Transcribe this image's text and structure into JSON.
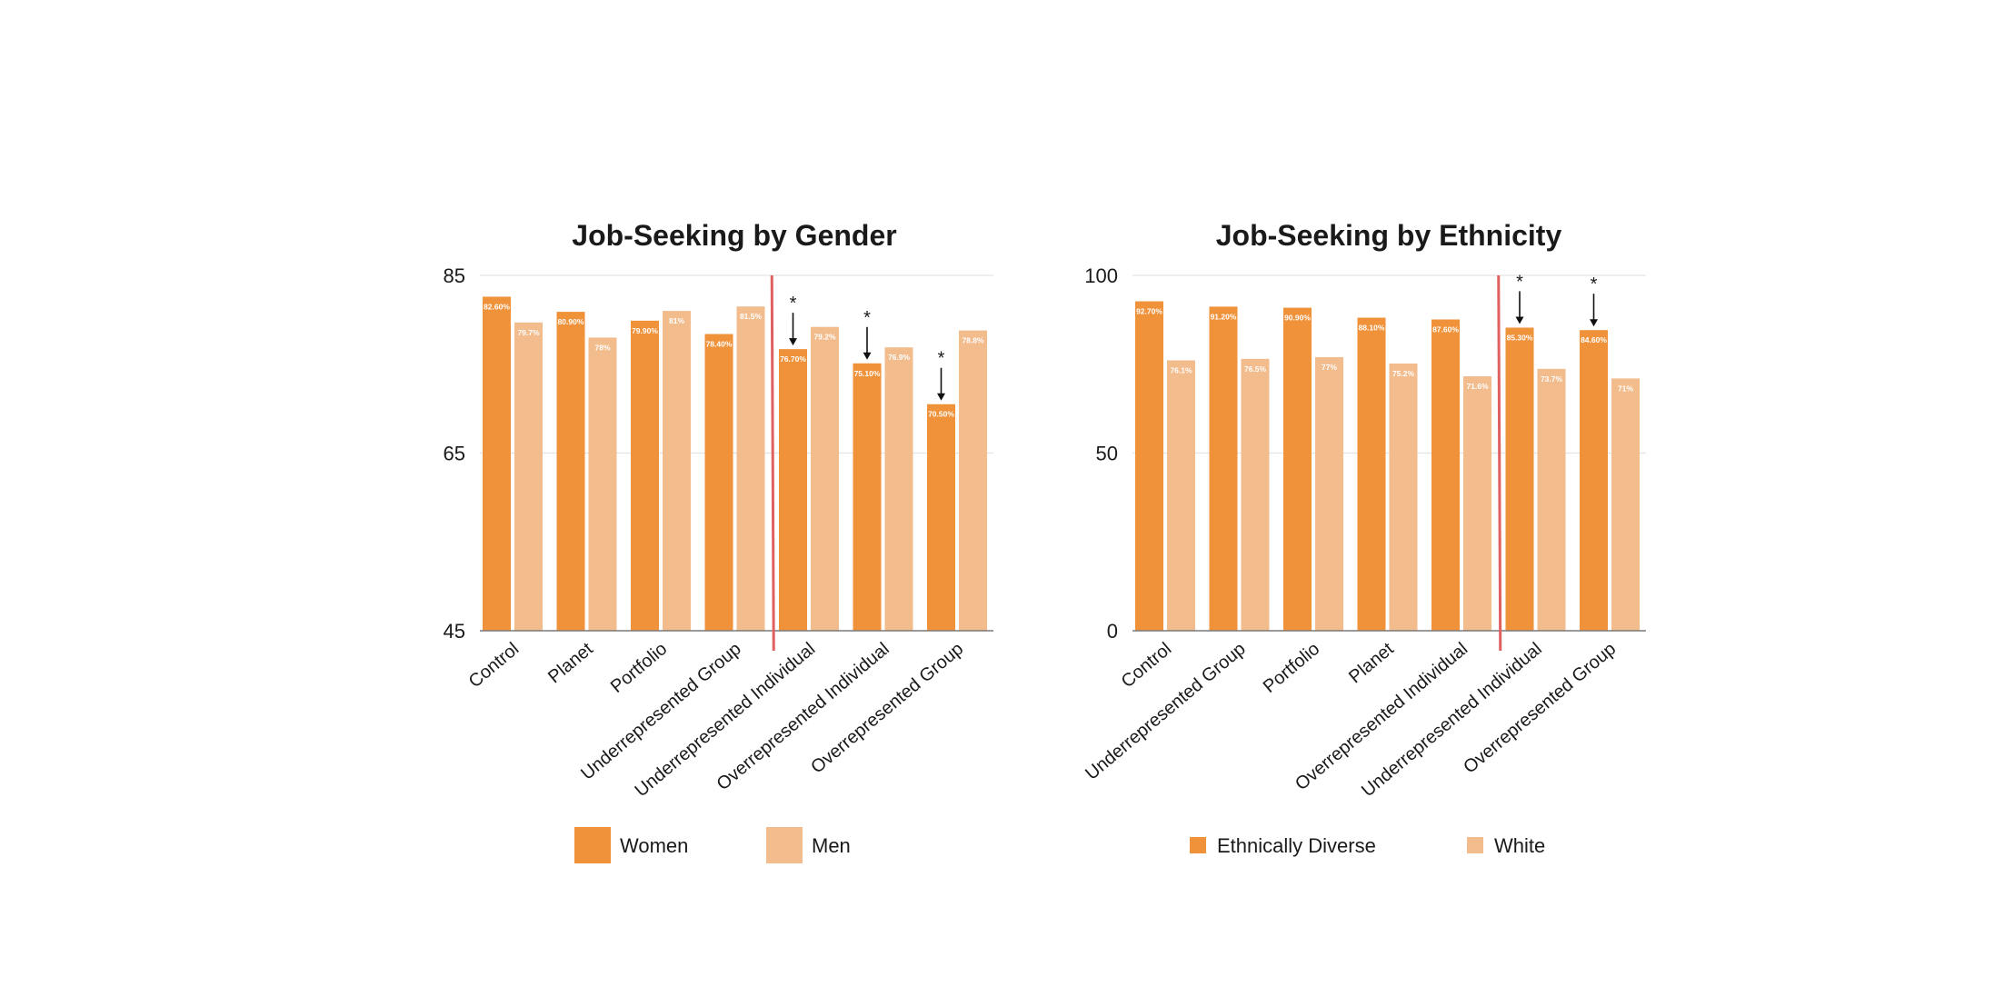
{
  "colors": {
    "primary": "#F0923A",
    "secondary": "#F2BC8D",
    "divider": "#E06060",
    "grid": "#E3E3E3",
    "axis": "#7a7a7a",
    "arrow": "#111111"
  },
  "chart_data": [
    {
      "type": "bar",
      "title": "Job-Seeking by Gender",
      "ylim": [
        45,
        85
      ],
      "yticks": [
        45,
        65,
        85
      ],
      "grid": true,
      "categories": [
        "Control",
        "Planet",
        "Portfolio",
        "Underrepresented Group",
        "Underrepresented Individual",
        "Overrepresented Individual",
        "Overrepresented Group"
      ],
      "series": [
        {
          "name": "Women",
          "values": [
            82.6,
            80.9,
            79.9,
            78.4,
            76.7,
            75.1,
            70.5
          ],
          "labels": [
            "82.60%",
            "80.90%",
            "79.90%",
            "78.40%",
            "76.70%",
            "75.10%",
            "70.50%"
          ]
        },
        {
          "name": "Men",
          "values": [
            79.7,
            78,
            81,
            81.5,
            79.2,
            76.9,
            78.8
          ],
          "labels": [
            "79.7%",
            "78%",
            "81%",
            "81.5%",
            "79.2%",
            "76.9%",
            "78.8%"
          ]
        }
      ],
      "divider_after_index": 3,
      "significance_marker": "*",
      "significant_indices": [
        4,
        5,
        6
      ],
      "legend": {
        "position": "bottom",
        "entries": [
          "Women",
          "Men"
        ]
      }
    },
    {
      "type": "bar",
      "title": "Job-Seeking by Ethnicity",
      "ylim": [
        0,
        100
      ],
      "yticks": [
        0,
        50,
        100
      ],
      "grid": true,
      "categories": [
        "Control",
        "Underrepresented Group",
        "Portfolio",
        "Planet",
        "Overrepresented Individual",
        "Underrepresented Individual",
        "Overrepresented Group"
      ],
      "series": [
        {
          "name": "Ethnically Diverse",
          "values": [
            92.7,
            91.2,
            90.9,
            88.1,
            87.6,
            85.3,
            84.6
          ],
          "labels": [
            "92.70%",
            "91.20%",
            "90.90%",
            "88.10%",
            "87.60%",
            "85.30%",
            "84.60%"
          ]
        },
        {
          "name": "White",
          "values": [
            76.1,
            76.5,
            77,
            75.2,
            71.6,
            73.7,
            71
          ],
          "labels": [
            "76.1%",
            "76.5%",
            "77%",
            "75.2%",
            "71.6%",
            "73.7%",
            "71%"
          ]
        }
      ],
      "divider_after_index": 4,
      "significance_marker": "*",
      "significant_indices": [
        5,
        6
      ],
      "legend": {
        "position": "bottom",
        "entries": [
          "Ethnically Diverse",
          "White"
        ]
      }
    }
  ]
}
